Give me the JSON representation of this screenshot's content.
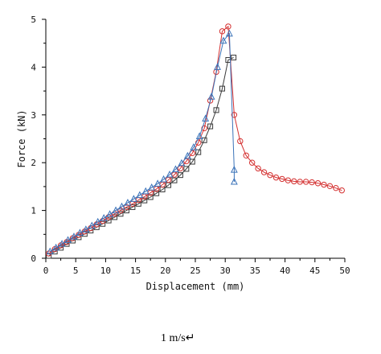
{
  "chart_data": {
    "type": "line",
    "title": "",
    "xlabel": "Displacement (mm)",
    "ylabel": "Force (kN)",
    "xlim": [
      0,
      50
    ],
    "ylim": [
      0,
      5
    ],
    "xticks": [
      0,
      5,
      10,
      15,
      20,
      25,
      30,
      35,
      40,
      45,
      50
    ],
    "yticks": [
      0,
      1,
      2,
      3,
      4,
      5
    ],
    "grid": false,
    "legend": "none",
    "series": [
      {
        "marker": "square",
        "color": "#3a3a3a",
        "x": [
          0.5,
          1.5,
          2.5,
          3.5,
          4.5,
          5.5,
          6.5,
          7.5,
          8.5,
          9.5,
          10.5,
          11.5,
          12.5,
          13.5,
          14.5,
          15.5,
          16.5,
          17.5,
          18.5,
          19.5,
          20.5,
          21.5,
          22.5,
          23.5,
          24.5,
          25.5,
          26.5,
          27.5,
          28.5,
          29.5,
          30.5,
          31.4
        ],
        "y": [
          0.05,
          0.14,
          0.22,
          0.3,
          0.37,
          0.44,
          0.51,
          0.58,
          0.65,
          0.72,
          0.79,
          0.86,
          0.93,
          1.0,
          1.07,
          1.14,
          1.21,
          1.28,
          1.36,
          1.44,
          1.53,
          1.63,
          1.74,
          1.87,
          2.02,
          2.22,
          2.47,
          2.76,
          3.1,
          3.55,
          4.15,
          4.2
        ]
      },
      {
        "marker": "circle",
        "color": "#d43030",
        "x": [
          0.5,
          1.5,
          2.5,
          3.5,
          4.5,
          5.5,
          6.5,
          7.5,
          8.5,
          9.5,
          10.5,
          11.5,
          12.5,
          13.5,
          14.5,
          15.5,
          16.5,
          17.5,
          18.5,
          19.5,
          20.5,
          21.5,
          22.5,
          23.5,
          24.5,
          25.5,
          26.5,
          27.5,
          28.5,
          29.5,
          30.5,
          31.5,
          32.5,
          33.5,
          34.5,
          35.5,
          36.5,
          37.5,
          38.5,
          39.5,
          40.5,
          41.5,
          42.5,
          43.5,
          44.5,
          45.5,
          46.5,
          47.5,
          48.5,
          49.5
        ],
        "y": [
          0.1,
          0.19,
          0.27,
          0.34,
          0.42,
          0.49,
          0.56,
          0.63,
          0.71,
          0.78,
          0.86,
          0.93,
          1.0,
          1.07,
          1.14,
          1.22,
          1.29,
          1.37,
          1.45,
          1.54,
          1.64,
          1.75,
          1.88,
          2.03,
          2.2,
          2.42,
          2.72,
          3.3,
          3.9,
          4.75,
          4.85,
          3.0,
          2.45,
          2.15,
          2.0,
          1.88,
          1.8,
          1.74,
          1.69,
          1.66,
          1.63,
          1.61,
          1.6,
          1.6,
          1.59,
          1.57,
          1.54,
          1.51,
          1.47,
          1.42
        ]
      },
      {
        "marker": "triangle",
        "color": "#3b73b9",
        "x": [
          0.7,
          1.7,
          2.7,
          3.7,
          4.7,
          5.7,
          6.7,
          7.7,
          8.7,
          9.7,
          10.7,
          11.7,
          12.7,
          13.7,
          14.7,
          15.7,
          16.7,
          17.7,
          18.7,
          19.7,
          20.7,
          21.7,
          22.7,
          23.7,
          24.7,
          25.7,
          26.7,
          27.7,
          28.7,
          29.7,
          30.7,
          31.5,
          31.5
        ],
        "y": [
          0.14,
          0.22,
          0.3,
          0.38,
          0.45,
          0.53,
          0.6,
          0.68,
          0.76,
          0.84,
          0.92,
          1.0,
          1.08,
          1.16,
          1.24,
          1.32,
          1.4,
          1.48,
          1.56,
          1.65,
          1.75,
          1.86,
          1.99,
          2.14,
          2.32,
          2.55,
          2.92,
          3.38,
          4.0,
          4.55,
          4.7,
          1.85,
          1.6
        ]
      }
    ]
  },
  "caption": "1 m/s↵"
}
